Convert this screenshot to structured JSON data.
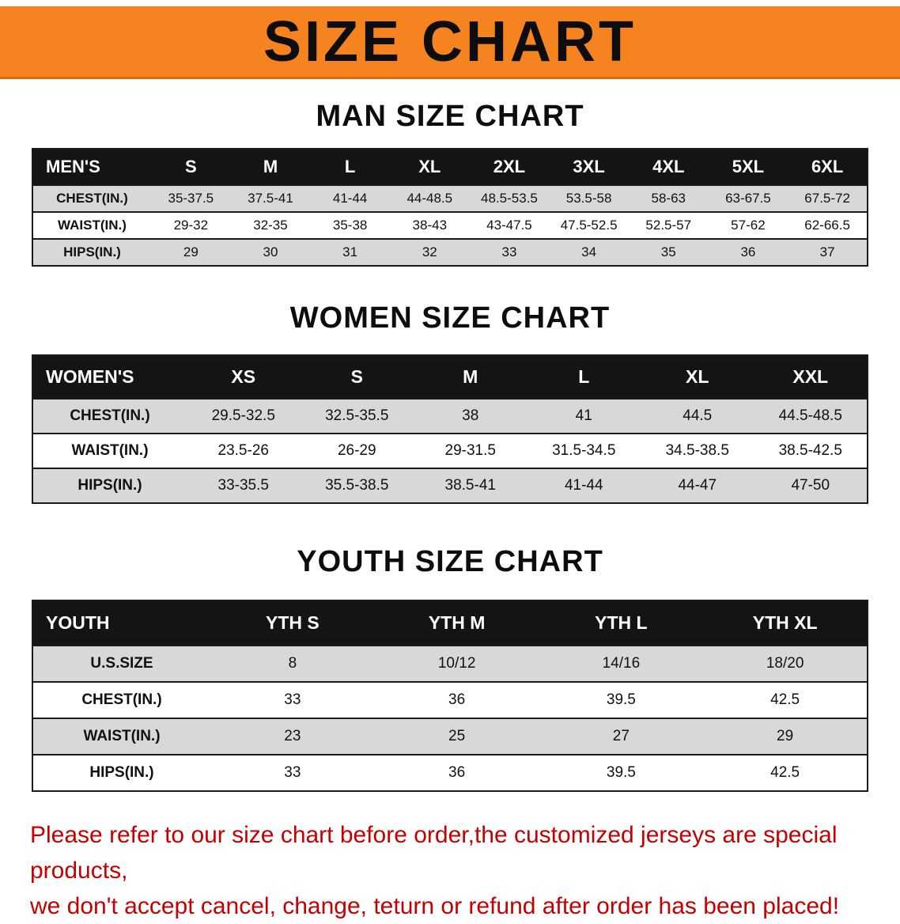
{
  "banner": {
    "title": "SIZE CHART"
  },
  "men": {
    "heading": "MAN SIZE CHART",
    "table": {
      "header": [
        "MEN'S",
        "S",
        "M",
        "L",
        "XL",
        "2XL",
        "3XL",
        "4XL",
        "5XL",
        "6XL"
      ],
      "rows": [
        [
          "CHEST(IN.)",
          "35-37.5",
          "37.5-41",
          "41-44",
          "44-48.5",
          "48.5-53.5",
          "53.5-58",
          "58-63",
          "63-67.5",
          "67.5-72"
        ],
        [
          "WAIST(IN.)",
          "29-32",
          "32-35",
          "35-38",
          "38-43",
          "43-47.5",
          "47.5-52.5",
          "52.5-57",
          "57-62",
          "62-66.5"
        ],
        [
          "HIPS(IN.)",
          "29",
          "30",
          "31",
          "32",
          "33",
          "34",
          "35",
          "36",
          "37"
        ]
      ]
    }
  },
  "women": {
    "heading": "WOMEN SIZE CHART",
    "table": {
      "header": [
        "WOMEN'S",
        "XS",
        "S",
        "M",
        "L",
        "XL",
        "XXL"
      ],
      "rows": [
        [
          "CHEST(IN.)",
          "29.5-32.5",
          "32.5-35.5",
          "38",
          "41",
          "44.5",
          "44.5-48.5"
        ],
        [
          "WAIST(IN.)",
          "23.5-26",
          "26-29",
          "29-31.5",
          "31.5-34.5",
          "34.5-38.5",
          "38.5-42.5"
        ],
        [
          "HIPS(IN.)",
          "33-35.5",
          "35.5-38.5",
          "38.5-41",
          "41-44",
          "44-47",
          "47-50"
        ]
      ]
    }
  },
  "youth": {
    "heading": "YOUTH SIZE CHART",
    "table": {
      "header": [
        "YOUTH",
        "YTH S",
        "YTH M",
        "YTH L",
        "YTH XL"
      ],
      "rows": [
        [
          "U.S.SIZE",
          "8",
          "10/12",
          "14/16",
          "18/20"
        ],
        [
          "CHEST(IN.)",
          "33",
          "36",
          "39.5",
          "42.5"
        ],
        [
          "WAIST(IN.)",
          "23",
          "25",
          "27",
          "29"
        ],
        [
          "HIPS(IN.)",
          "33",
          "36",
          "39.5",
          "42.5"
        ]
      ]
    }
  },
  "disclaimer": {
    "line1": "Please refer to our size chart before order,the customized jerseys are special products,",
    "line2": "we don't accept cancel, change, teturn or refund after order has been placed!"
  },
  "colors": {
    "banner_orange": "#f5831f",
    "header_black": "#141414",
    "row_gray": "#d8d8d8",
    "disclaimer_red": "#c40000"
  }
}
